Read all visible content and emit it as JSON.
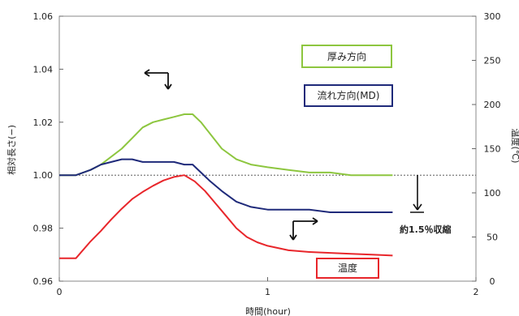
{
  "chart_data": {
    "type": "line",
    "xlabel": "時間(hour)",
    "ylabel_left": "相対長さ(−)",
    "ylabel_right": "温度(℃)",
    "x_ticks": [
      "0",
      "1",
      "2"
    ],
    "y_left_ticks": [
      "0.96",
      "0.98",
      "1.00",
      "1.02",
      "1.04",
      "1.06"
    ],
    "y_right_ticks": [
      "0",
      "50",
      "100",
      "150",
      "200",
      "250",
      "300"
    ],
    "xlim": [
      0,
      2
    ],
    "ylim_left": [
      0.96,
      1.06
    ],
    "ylim_right": [
      0,
      300
    ],
    "reference_line": 1.0,
    "series": [
      {
        "name": "厚み方向",
        "axis": "left",
        "color": "#8dc63f",
        "x": [
          0,
          0.08,
          0.15,
          0.2,
          0.25,
          0.3,
          0.35,
          0.4,
          0.45,
          0.5,
          0.55,
          0.6,
          0.64,
          0.68,
          0.72,
          0.78,
          0.85,
          0.92,
          1.0,
          1.1,
          1.2,
          1.3,
          1.4,
          1.5,
          1.6
        ],
        "y": [
          1.0,
          1.0,
          1.002,
          1.004,
          1.007,
          1.01,
          1.014,
          1.018,
          1.02,
          1.021,
          1.022,
          1.023,
          1.023,
          1.02,
          1.016,
          1.01,
          1.006,
          1.004,
          1.003,
          1.002,
          1.001,
          1.001,
          1.0,
          1.0,
          1.0
        ]
      },
      {
        "name": "流れ方向(MD)",
        "axis": "left",
        "color": "#1f2a7a",
        "x": [
          0,
          0.08,
          0.15,
          0.2,
          0.25,
          0.3,
          0.35,
          0.4,
          0.45,
          0.5,
          0.55,
          0.6,
          0.64,
          0.68,
          0.72,
          0.78,
          0.85,
          0.92,
          1.0,
          1.1,
          1.2,
          1.3,
          1.4,
          1.5,
          1.6
        ],
        "y": [
          1.0,
          1.0,
          1.002,
          1.004,
          1.005,
          1.006,
          1.006,
          1.005,
          1.005,
          1.005,
          1.005,
          1.004,
          1.004,
          1.001,
          0.998,
          0.994,
          0.99,
          0.988,
          0.987,
          0.987,
          0.987,
          0.986,
          0.986,
          0.986,
          0.986
        ]
      },
      {
        "name": "温度",
        "axis": "right",
        "color": "#e8262b",
        "x": [
          0,
          0.08,
          0.15,
          0.2,
          0.25,
          0.3,
          0.35,
          0.4,
          0.45,
          0.5,
          0.55,
          0.6,
          0.65,
          0.7,
          0.75,
          0.8,
          0.85,
          0.9,
          0.95,
          1.0,
          1.1,
          1.2,
          1.3,
          1.4,
          1.5,
          1.6
        ],
        "y": [
          26,
          26,
          45,
          57,
          70,
          82,
          93,
          101,
          108,
          114,
          118,
          120,
          113,
          102,
          88,
          74,
          60,
          50,
          44,
          40,
          35,
          33,
          32,
          31,
          30,
          29
        ]
      }
    ],
    "annotations": {
      "shrink_label": "約1.5％収縮"
    }
  }
}
